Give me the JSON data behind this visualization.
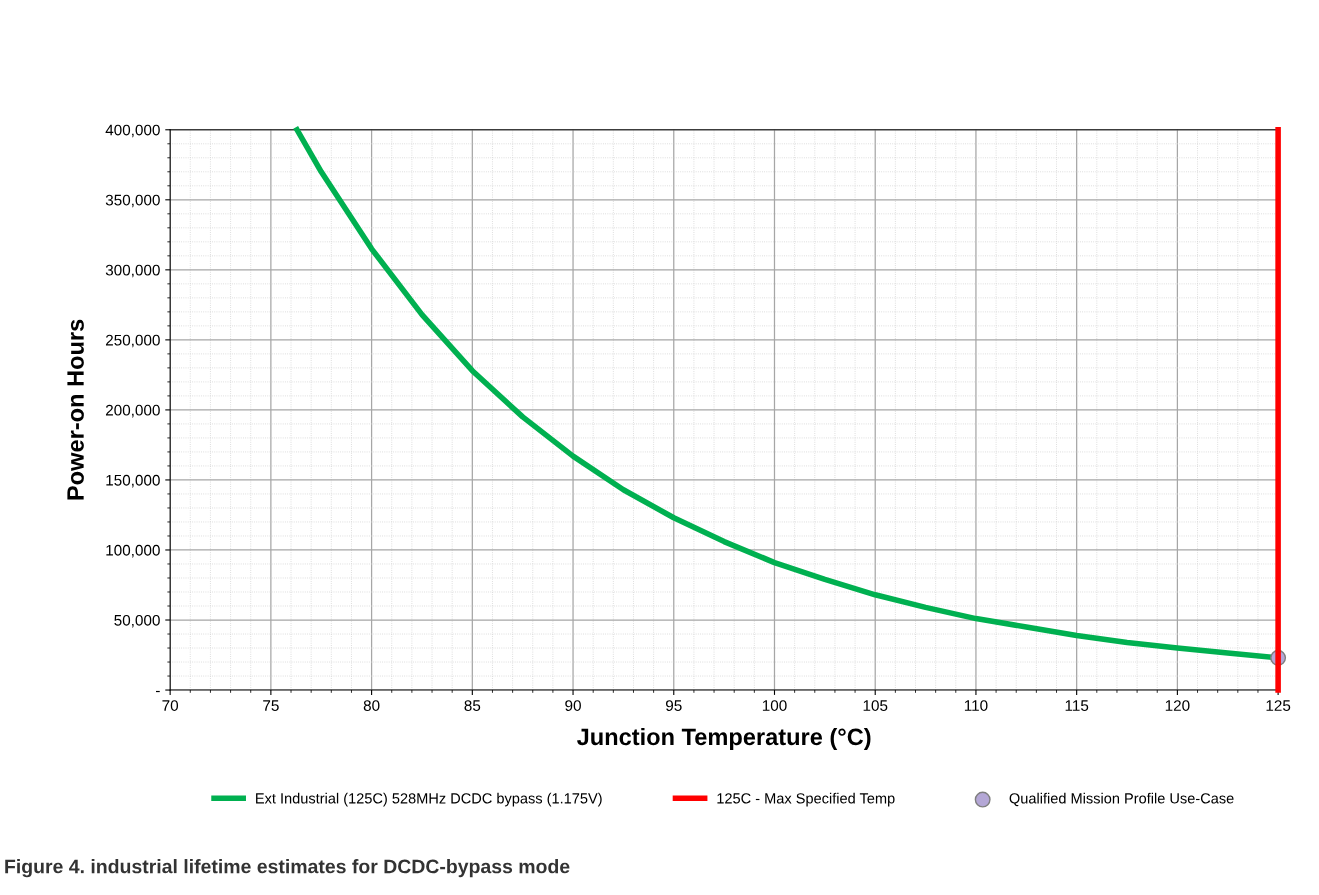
{
  "chart_data": {
    "type": "line",
    "xlabel": "Junction Temperature (°C)",
    "ylabel": "Power-on Hours",
    "xlim": [
      70,
      125
    ],
    "xticks": [
      70,
      75,
      80,
      85,
      90,
      95,
      100,
      105,
      110,
      115,
      120,
      125
    ],
    "ylim": [
      0,
      400000
    ],
    "yticks": [
      {
        "value": 0,
        "label": "-"
      },
      {
        "value": 50000,
        "label": "50,000"
      },
      {
        "value": 100000,
        "label": "100,000"
      },
      {
        "value": 150000,
        "label": "150,000"
      },
      {
        "value": 200000,
        "label": "200,000"
      },
      {
        "value": 250000,
        "label": "250,000"
      },
      {
        "value": 300000,
        "label": "300,000"
      },
      {
        "value": 350000,
        "label": "350,000"
      },
      {
        "value": 400000,
        "label": "400,000"
      }
    ],
    "grid": true,
    "legend": "bottom",
    "ref_lines": [
      {
        "axis": "x",
        "value": 125,
        "label": "125C - Max Specified Temp",
        "color": "#ff0000"
      }
    ],
    "series": [
      {
        "name": "Ext Industrial (125C) 528MHz DCDC bypass (1.175V)",
        "color": "#00b050",
        "x": [
          76.3,
          77.5,
          80,
          82.5,
          85,
          87.5,
          90,
          92.5,
          95,
          97.5,
          100,
          102.5,
          105,
          107.5,
          110,
          112.5,
          115,
          117.5,
          120,
          122.5,
          125
        ],
        "values": [
          400000,
          370000,
          315000,
          268000,
          228000,
          195000,
          167000,
          143000,
          123000,
          106000,
          91000,
          79000,
          68000,
          59000,
          51000,
          45000,
          39000,
          34000,
          30000,
          26500,
          23000
        ]
      },
      {
        "name": "Qualified Mission Profile Use-Case",
        "color": "#b4a7d6",
        "type": "scatter",
        "marker": "circle",
        "x": [
          125
        ],
        "values": [
          23000
        ]
      }
    ],
    "annotations": [
      "Figure 4. industrial lifetime estimates for DCDC-bypass mode"
    ]
  }
}
